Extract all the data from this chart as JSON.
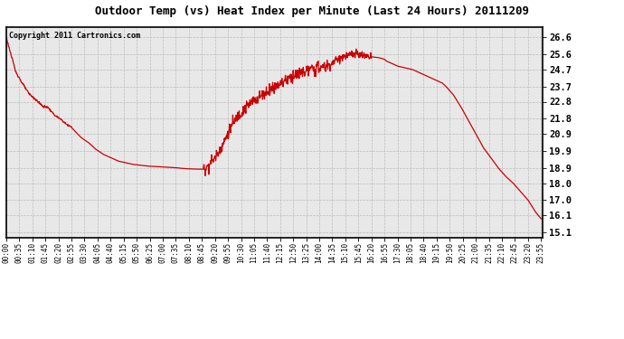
{
  "title": "Outdoor Temp (vs) Heat Index per Minute (Last 24 Hours) 20111209",
  "copyright_text": "Copyright 2011 Cartronics.com",
  "line_color": "#cc0000",
  "background_color": "#ffffff",
  "plot_bg_color": "#e8e8e8",
  "grid_color": "#bbbbbb",
  "yticks": [
    15.1,
    16.1,
    17.0,
    18.0,
    18.9,
    19.9,
    20.9,
    21.8,
    22.8,
    23.7,
    24.7,
    25.6,
    26.6
  ],
  "ymin": 14.8,
  "ymax": 27.2,
  "xtick_labels": [
    "00:00",
    "00:35",
    "01:10",
    "01:45",
    "02:20",
    "02:55",
    "03:30",
    "04:05",
    "04:40",
    "05:15",
    "05:50",
    "06:25",
    "07:00",
    "07:35",
    "08:10",
    "08:45",
    "09:20",
    "09:55",
    "10:30",
    "11:05",
    "11:40",
    "12:15",
    "12:50",
    "13:25",
    "14:00",
    "14:35",
    "15:10",
    "15:45",
    "16:20",
    "16:55",
    "17:30",
    "18:05",
    "18:40",
    "19:15",
    "19:50",
    "20:25",
    "21:00",
    "21:35",
    "22:10",
    "22:45",
    "23:20",
    "23:55"
  ],
  "key_times_minutes": [
    0,
    5,
    15,
    25,
    40,
    60,
    80,
    100,
    105,
    110,
    130,
    150,
    165,
    170,
    200,
    220,
    240,
    260,
    280,
    300,
    320,
    340,
    360,
    380,
    400,
    420,
    440,
    455,
    460,
    465,
    470,
    475,
    480,
    490,
    500,
    510,
    520,
    525,
    530,
    540,
    560,
    580,
    600,
    620,
    640,
    660,
    680,
    700,
    720,
    735,
    750,
    760,
    770,
    780,
    790,
    800,
    805,
    810,
    820,
    830,
    840,
    850,
    860,
    870,
    880,
    900,
    920,
    940,
    960,
    980,
    1000,
    1015,
    1020,
    1030,
    1040,
    1050,
    1060,
    1070,
    1080,
    1090,
    1100,
    1110,
    1120,
    1130,
    1140,
    1150,
    1160,
    1170,
    1180,
    1200,
    1220,
    1240,
    1260,
    1270,
    1280,
    1300,
    1320,
    1340,
    1360,
    1380,
    1400,
    1420,
    1435
  ],
  "key_values": [
    26.6,
    26.2,
    25.4,
    24.6,
    24.0,
    23.3,
    22.9,
    22.5,
    22.5,
    22.5,
    22.0,
    21.7,
    21.4,
    21.4,
    20.7,
    20.4,
    20.0,
    19.7,
    19.5,
    19.3,
    19.2,
    19.1,
    19.05,
    19.0,
    18.98,
    18.95,
    18.92,
    18.9,
    18.9,
    18.88,
    18.87,
    18.86,
    18.85,
    18.84,
    18.83,
    18.82,
    18.82,
    18.82,
    18.82,
    19.0,
    19.5,
    20.2,
    21.2,
    21.9,
    22.4,
    22.8,
    23.1,
    23.4,
    23.7,
    23.9,
    24.1,
    24.2,
    24.35,
    24.4,
    24.5,
    24.55,
    24.6,
    24.65,
    24.7,
    24.75,
    24.8,
    24.85,
    24.9,
    25.0,
    25.2,
    25.4,
    25.55,
    25.6,
    25.5,
    25.45,
    25.4,
    25.3,
    25.2,
    25.1,
    25.0,
    24.9,
    24.85,
    24.8,
    24.75,
    24.7,
    24.6,
    24.5,
    24.4,
    24.3,
    24.2,
    24.1,
    24.0,
    23.9,
    23.7,
    23.2,
    22.5,
    21.7,
    20.9,
    20.5,
    20.1,
    19.5,
    18.9,
    18.4,
    18.0,
    17.5,
    17.0,
    16.3,
    15.9
  ]
}
